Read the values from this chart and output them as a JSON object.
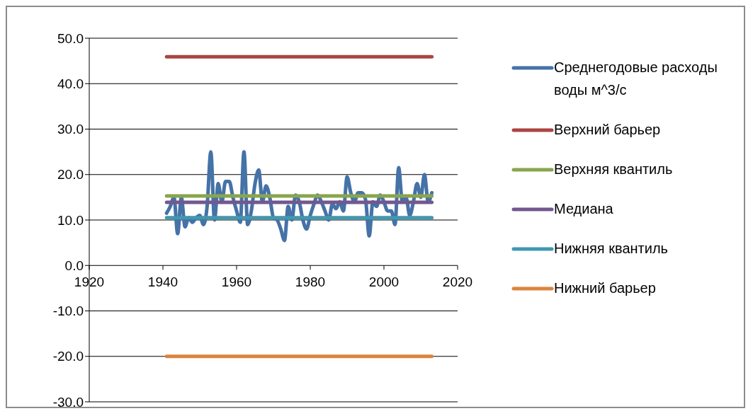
{
  "chart_data": {
    "type": "line",
    "legend": "right",
    "grid": "y",
    "marker": "none",
    "line_style": "solid",
    "xlim": [
      1920,
      2020
    ],
    "xticks": [
      1920,
      1940,
      1960,
      1980,
      2000,
      2020
    ],
    "ylim": [
      -30,
      50
    ],
    "yticks": [
      {
        "value": -30,
        "label": "-30.0"
      },
      {
        "value": -20,
        "label": "-20.0"
      },
      {
        "value": -10,
        "label": "-10.0"
      },
      {
        "value": 0,
        "label": "0.0"
      },
      {
        "value": 10,
        "label": "10.0"
      },
      {
        "value": 20,
        "label": "20.0"
      },
      {
        "value": 30,
        "label": "30.0"
      },
      {
        "value": 40,
        "label": "40.0"
      },
      {
        "value": 50,
        "label": "50.0"
      }
    ],
    "series": [
      {
        "name": "Среднегодовые расходы воды м^3/с",
        "color": "#4572a7",
        "x": [
          1941,
          1942,
          1943,
          1944,
          1945,
          1946,
          1947,
          1948,
          1949,
          1950,
          1951,
          1952,
          1953,
          1954,
          1955,
          1956,
          1957,
          1958,
          1959,
          1960,
          1961,
          1962,
          1963,
          1964,
          1965,
          1966,
          1967,
          1968,
          1969,
          1970,
          1971,
          1972,
          1973,
          1974,
          1975,
          1976,
          1977,
          1978,
          1979,
          1980,
          1981,
          1982,
          1983,
          1984,
          1985,
          1986,
          1987,
          1988,
          1989,
          1990,
          1991,
          1992,
          1993,
          1994,
          1995,
          1996,
          1997,
          1998,
          1999,
          2000,
          2001,
          2002,
          2003,
          2004,
          2005,
          2006,
          2007,
          2008,
          2009,
          2010,
          2011,
          2012,
          2013
        ],
        "values": [
          11.5,
          13,
          15,
          7,
          15,
          8.5,
          10.5,
          9.5,
          10.5,
          11,
          9,
          13,
          25,
          10,
          18,
          14,
          18.5,
          18.5,
          15,
          12,
          9.5,
          25,
          9,
          12,
          18,
          21,
          14,
          17.5,
          15,
          10.5,
          10,
          8,
          5.5,
          13,
          10,
          15.5,
          14,
          10,
          8,
          11,
          13.5,
          15.5,
          14,
          12,
          10,
          13.5,
          12.5,
          14,
          12,
          19.5,
          16,
          14,
          16,
          16,
          14.5,
          6.5,
          14,
          13,
          15.5,
          14,
          12,
          12,
          9,
          21.5,
          14,
          15,
          11,
          14,
          18,
          15,
          20,
          14,
          16
        ]
      },
      {
        "name": "Верхний барьер",
        "color": "#aa4643",
        "x": [
          1941,
          2013
        ],
        "values": [
          45.9,
          45.9
        ]
      },
      {
        "name": "Верхняя квантиль",
        "color": "#89a54e",
        "x": [
          1941,
          2013
        ],
        "values": [
          15.3,
          15.3
        ]
      },
      {
        "name": "Медиана",
        "color": "#71588f",
        "x": [
          1941,
          2013
        ],
        "values": [
          13.9,
          13.9
        ]
      },
      {
        "name": "Нижняя квантиль",
        "color": "#4198af",
        "x": [
          1941,
          2013
        ],
        "values": [
          10.5,
          10.5
        ]
      },
      {
        "name": "Нижний барьер",
        "color": "#db843d",
        "x": [
          1941,
          2013
        ],
        "values": [
          -20,
          -20
        ]
      }
    ]
  }
}
